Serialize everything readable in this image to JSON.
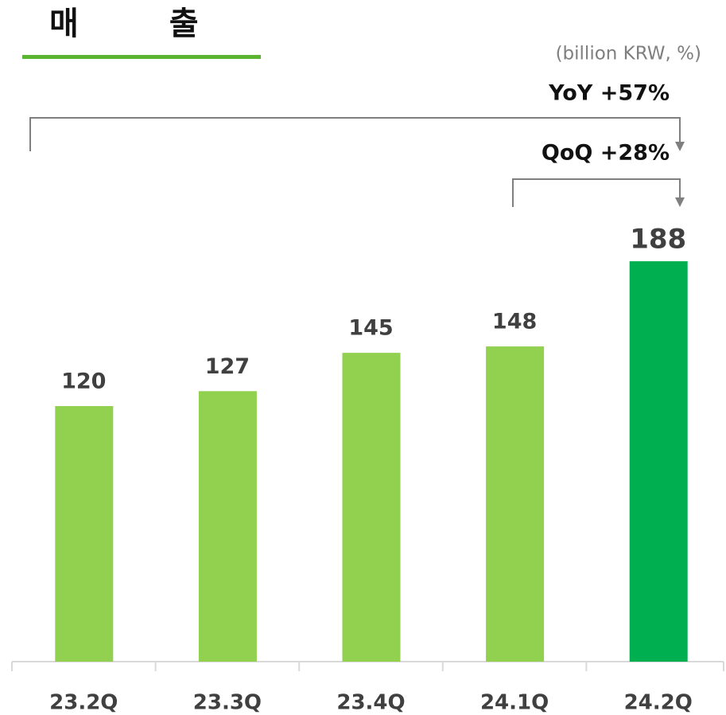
{
  "chart_data": {
    "type": "bar",
    "title": "매 출",
    "unit": "(billion KRW,  %)",
    "annotations": [
      "YoY +57%",
      "QoQ +28%"
    ],
    "categories": [
      "23.2Q",
      "23.3Q",
      "23.4Q",
      "24.1Q",
      "24.2Q"
    ],
    "values": [
      120,
      127,
      145,
      148,
      188
    ],
    "colors": [
      "#92d050",
      "#92d050",
      "#92d050",
      "#92d050",
      "#00b050"
    ],
    "ylim": [
      0,
      200
    ],
    "grid": false
  }
}
